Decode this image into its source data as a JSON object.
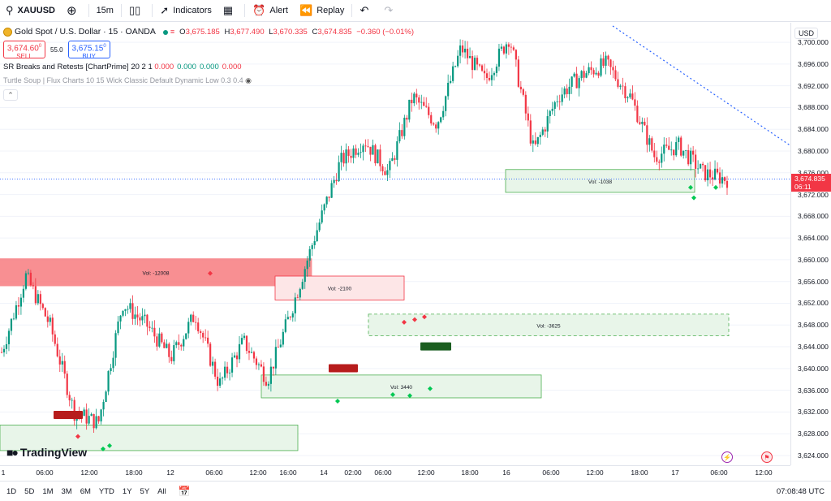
{
  "toolbar": {
    "symbol": "XAUUSD",
    "interval": "15m",
    "indicators_label": "Indicators",
    "alert_label": "Alert",
    "replay_label": "Replay"
  },
  "legend": {
    "title": "Gold Spot / U.S. Dollar · 15 · OANDA",
    "open_label": "O",
    "open": "3,675.185",
    "high_label": "H",
    "high": "3,677.490",
    "low_label": "L",
    "low": "3,670.335",
    "close_label": "C",
    "close": "3,674.835",
    "change": "−0.360 (−0.01%)",
    "sell_price": "3,674.60",
    "sell_sup": "0",
    "sell_label": "SELL",
    "spread": "55.0",
    "buy_price": "3,675.15",
    "buy_sup": "0",
    "buy_label": "BUY",
    "indicator1_name": "SR Breaks and Retests [ChartPrime] 20 2 1",
    "indicator1_values": [
      "0.000",
      "0.000",
      "0.000",
      "0.000"
    ],
    "indicator2": "Turtle Soup | Flux Charts 10 15 Wick Classic Default Dynamic Low 0.3 0.4"
  },
  "price_axis": {
    "currency": "USD",
    "labels": [
      "3,700.000",
      "3,696.000",
      "3,692.000",
      "3,688.000",
      "3,684.000",
      "3,680.000",
      "3,676.000",
      "3,672.000",
      "3,668.000",
      "3,664.000",
      "3,660.000",
      "3,656.000",
      "3,652.000",
      "3,648.000",
      "3,644.000",
      "3,640.000",
      "3,636.000",
      "3,632.000",
      "3,628.000",
      "3,624.000"
    ],
    "current_price": "3,674.835",
    "countdown": "06:11"
  },
  "time_axis": {
    "labels": [
      "1",
      "06:00",
      "12:00",
      "18:00",
      "12",
      "06:00",
      "12:00",
      "16:00",
      "14",
      "02:00",
      "06:00",
      "12:00",
      "18:00",
      "16",
      "06:00",
      "12:00",
      "18:00",
      "17",
      "06:00",
      "12:00"
    ]
  },
  "bottom_bar": {
    "ranges": [
      "1D",
      "5D",
      "1M",
      "3M",
      "6M",
      "YTD",
      "1Y",
      "5Y",
      "All"
    ],
    "clock": "07:08:48 UTC"
  },
  "branding": {
    "logo_text": "TradingView"
  },
  "zones": [
    {
      "label": "Vol: -12008",
      "color": "#f77c80"
    },
    {
      "label": "Vol: -2100",
      "color": "#fde6e7"
    },
    {
      "label": "Vol: -3625",
      "color": "#e8f5e9"
    },
    {
      "label": "Vol: 3440",
      "color": "#e8f5e9"
    },
    {
      "label": "Vol: -1038",
      "color": "#e8f5e9"
    },
    {
      "label": "",
      "color": "#e8f5e9"
    }
  ],
  "colors": {
    "up": "#089981",
    "down": "#f23645",
    "trend_line": "#2962ff"
  },
  "chart_data": {
    "type": "candlestick",
    "symbol": "XAUUSD",
    "interval": "15m",
    "ylim": [
      3622,
      3704
    ],
    "current_price": 3674.835,
    "trend_line": {
      "from": 3703,
      "to": 3681
    },
    "key_prices": [
      3643,
      3657,
      3648,
      3632,
      3630,
      3652,
      3648,
      3642,
      3650,
      3637,
      3645,
      3638,
      3651,
      3665,
      3678,
      3682,
      3676,
      3690,
      3685,
      3699,
      3693,
      3701,
      3680,
      3690,
      3694,
      3696,
      3690,
      3679,
      3681,
      3676,
      3674.8
    ]
  }
}
